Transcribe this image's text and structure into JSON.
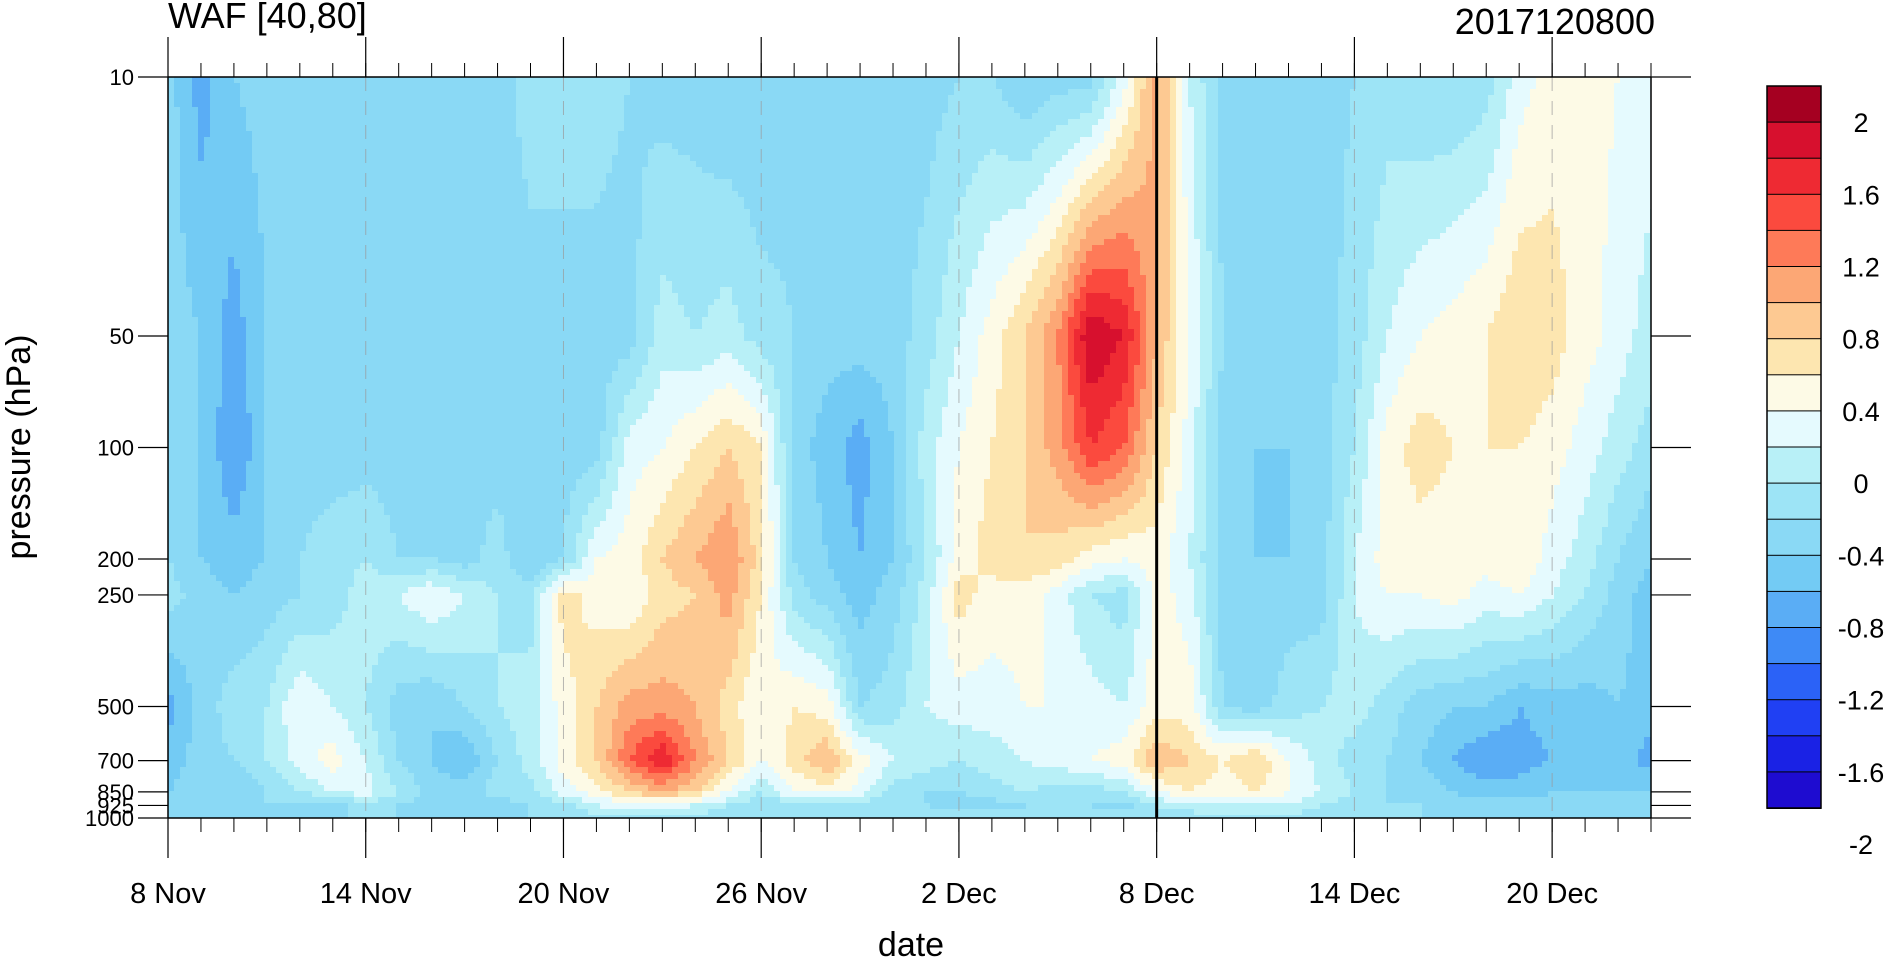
{
  "chart_data": {
    "type": "heatmap",
    "title_left": "WAF [40,80]",
    "title_right": "2017120800",
    "xlabel": "date",
    "ylabel": "pressure (hPa)",
    "x_tick_labels": [
      "8 Nov",
      "14 Nov",
      "20 Nov",
      "26 Nov",
      "2 Dec",
      "8 Dec",
      "14 Dec",
      "20 Dec"
    ],
    "x_tick_days": [
      0,
      6,
      12,
      18,
      24,
      30,
      36,
      42
    ],
    "xlim_days": [
      0,
      45
    ],
    "y_levels": [
      10,
      50,
      100,
      200,
      250,
      500,
      700,
      850,
      925,
      1000
    ],
    "y_tick_labels": [
      "10",
      "50",
      "100",
      "200",
      "250",
      "500",
      "700",
      "850",
      "925",
      "1000"
    ],
    "y_scale": "log",
    "ylim": [
      1000,
      10
    ],
    "reference_line": "8 Dec",
    "colorbar": {
      "label_values": [
        "2",
        "1.6",
        "1.2",
        "0.8",
        "0.4",
        "0",
        "-0.4",
        "-0.8",
        "-1.2",
        "-1.6",
        "-2"
      ],
      "colors_top_to_bottom": [
        "#a50021",
        "#d7102e",
        "#ee2a33",
        "#fb4a3e",
        "#fe7a58",
        "#fca775",
        "#fdc992",
        "#fde6b0",
        "#fdfae6",
        "#e5fafe",
        "#b8f0f7",
        "#9de4f6",
        "#8ad9f5",
        "#73cbf4",
        "#5aadf5",
        "#3e8af6",
        "#2b62f7",
        "#2040f3",
        "#1a22e5",
        "#1e0cd0"
      ]
    },
    "grid_days": [
      [
        10,
        11,
        12,
        13,
        14,
        15,
        16,
        17,
        18,
        19,
        20,
        21,
        22,
        23,
        24,
        25,
        26,
        27,
        28,
        29,
        30,
        31,
        32,
        33,
        34,
        35,
        36,
        37,
        38,
        39,
        40,
        41,
        42,
        43,
        44,
        45
      ],
      [
        0,
        1,
        2,
        3,
        4,
        5,
        6,
        7,
        8,
        9
      ]
    ],
    "values": [
      [
        -0.5,
        -0.9,
        -0.6,
        -0.5,
        -0.4,
        -0.5,
        -0.5,
        -0.5,
        -0.6,
        -0.6,
        -0.5,
        -0.3,
        -0.2,
        -0.3,
        -0.4,
        -0.5,
        -0.5,
        -0.6,
        -0.6,
        -0.5,
        -0.4,
        -0.5,
        -0.5,
        -0.5,
        -0.4,
        -0.4,
        -0.6,
        -0.5,
        -0.5,
        0.1,
        0.9,
        0.0,
        -0.5,
        -0.6,
        -0.6,
        -0.5,
        -0.4,
        -0.3,
        -0.4,
        -0.4,
        -0.3,
        0.1,
        0.3,
        0.3,
        0.2,
        0.1
      ],
      [
        -0.5,
        -0.6,
        -0.9,
        -0.6,
        -0.5,
        -0.5,
        -0.5,
        -0.5,
        -0.5,
        -0.5,
        -0.5,
        -0.5,
        -0.6,
        -0.5,
        -0.5,
        -0.1,
        -0.2,
        -0.1,
        -0.3,
        -0.4,
        -0.5,
        -0.5,
        -0.5,
        -0.3,
        0.0,
        0.3,
        0.6,
        1.0,
        1.8,
        1.6,
        0.8,
        0.2,
        -0.4,
        -0.5,
        -0.6,
        -0.5,
        -0.3,
        0.0,
        0.2,
        0.3,
        0.4,
        0.6,
        0.5,
        0.3,
        0.1,
        -0.1
      ],
      [
        -0.6,
        -0.6,
        -1.0,
        -0.6,
        -0.5,
        -0.5,
        -0.5,
        -0.5,
        -0.5,
        -0.5,
        -0.5,
        -0.6,
        -0.5,
        -0.5,
        0.1,
        0.2,
        0.4,
        0.6,
        0.4,
        -0.5,
        -0.7,
        -0.9,
        -0.6,
        -0.1,
        0.2,
        0.4,
        0.6,
        0.9,
        1.4,
        1.2,
        0.6,
        0.1,
        -0.5,
        -0.6,
        -0.6,
        -0.5,
        -0.2,
        0.3,
        0.5,
        0.4,
        0.4,
        0.4,
        0.3,
        0.1,
        -0.1,
        -0.3
      ],
      [
        -0.4,
        -0.6,
        -0.7,
        -0.6,
        -0.4,
        -0.3,
        -0.2,
        -0.4,
        -0.4,
        -0.5,
        -0.3,
        -0.6,
        -0.4,
        0.2,
        0.3,
        0.6,
        0.8,
        1.0,
        0.5,
        -0.4,
        -0.6,
        -0.8,
        -0.6,
        -0.2,
        0.3,
        0.5,
        0.6,
        0.5,
        0.3,
        0.2,
        0.3,
        0.0,
        -0.5,
        -0.6,
        -0.6,
        -0.5,
        0.0,
        0.3,
        0.3,
        0.3,
        0.3,
        0.4,
        0.1,
        -0.1,
        -0.4,
        -0.6
      ],
      [
        -0.3,
        -0.5,
        -0.6,
        -0.5,
        -0.4,
        -0.3,
        -0.1,
        0.0,
        0.2,
        0.0,
        -0.2,
        -0.3,
        0.5,
        0.3,
        0.2,
        0.5,
        0.6,
        0.9,
        0.4,
        -0.3,
        -0.5,
        -0.7,
        -0.5,
        -0.1,
        0.5,
        0.3,
        0.3,
        0.1,
        -0.2,
        -0.3,
        0.3,
        0.1,
        -0.5,
        -0.6,
        -0.5,
        -0.5,
        0.0,
        0.2,
        0.2,
        0.3,
        0.1,
        0.2,
        0.0,
        -0.2,
        -0.5,
        -0.7
      ],
      [
        -0.9,
        -0.5,
        -0.3,
        -0.2,
        0.2,
        0.0,
        -0.2,
        -0.5,
        -0.6,
        -0.4,
        -0.2,
        -0.1,
        0.3,
        0.6,
        0.9,
        0.9,
        0.8,
        0.5,
        0.2,
        0.4,
        0.3,
        -0.4,
        -0.3,
        0.0,
        0.1,
        0.1,
        0.2,
        0.2,
        0.1,
        0.0,
        0.3,
        0.3,
        -0.4,
        -0.5,
        -0.3,
        -0.2,
        -0.1,
        -0.3,
        -0.5,
        -0.6,
        -0.6,
        -0.8,
        -0.7,
        -0.7,
        -0.6,
        -0.7
      ],
      [
        -0.7,
        -0.5,
        -0.4,
        -0.2,
        0.1,
        0.3,
        0.0,
        -0.4,
        -0.6,
        -0.8,
        -0.4,
        -0.1,
        0.3,
        0.6,
        1.2,
        1.6,
        1.0,
        0.6,
        0.2,
        0.5,
        0.8,
        0.3,
        0.0,
        -0.1,
        -0.2,
        -0.1,
        0.0,
        0.1,
        0.2,
        0.3,
        0.8,
        0.6,
        0.4,
        0.6,
        0.2,
        -0.1,
        -0.3,
        -0.4,
        -0.6,
        -0.8,
        -1.0,
        -0.9,
        -0.8,
        -0.7,
        -0.7,
        -0.9
      ],
      [
        -0.6,
        -0.5,
        -0.6,
        -0.4,
        -0.2,
        0.0,
        0.1,
        -0.2,
        -0.5,
        -0.5,
        -0.3,
        -0.3,
        0.1,
        0.3,
        0.6,
        0.8,
        0.6,
        0.2,
        -0.2,
        0.2,
        0.3,
        0.1,
        -0.3,
        -0.4,
        -0.4,
        -0.3,
        -0.2,
        -0.3,
        -0.3,
        -0.2,
        0.2,
        0.4,
        0.3,
        0.4,
        0.2,
        0.0,
        -0.2,
        -0.4,
        -0.5,
        -0.6,
        -0.7,
        -0.7,
        -0.6,
        -0.6,
        -0.6,
        -0.6
      ],
      [
        -0.5,
        -0.5,
        -0.5,
        -0.4,
        -0.5,
        -0.5,
        -0.3,
        -0.4,
        -0.5,
        -0.5,
        -0.5,
        -0.4,
        -0.3,
        0.0,
        0.1,
        0.1,
        0.0,
        -0.2,
        -0.4,
        -0.3,
        -0.3,
        -0.3,
        -0.3,
        -0.4,
        -0.5,
        -0.5,
        -0.4,
        -0.3,
        -0.4,
        -0.5,
        -0.2,
        -0.1,
        0.0,
        0.0,
        0.0,
        -0.2,
        -0.3,
        -0.4,
        -0.4,
        -0.5,
        -0.5,
        -0.5,
        -0.5,
        -0.5,
        -0.5,
        -0.5
      ],
      [
        -0.4,
        -0.4,
        -0.4,
        -0.4,
        -0.4,
        -0.4,
        -0.4,
        -0.4,
        -0.4,
        -0.4,
        -0.4,
        -0.4,
        -0.4,
        -0.3,
        -0.3,
        -0.3,
        -0.3,
        -0.3,
        -0.3,
        -0.3,
        -0.3,
        -0.3,
        -0.3,
        -0.3,
        -0.3,
        -0.3,
        -0.3,
        -0.3,
        -0.3,
        -0.3,
        -0.3,
        -0.3,
        -0.3,
        -0.3,
        -0.3,
        -0.3,
        -0.3,
        -0.3,
        -0.4,
        -0.4,
        -0.4,
        -0.4,
        -0.4,
        -0.4,
        -0.4,
        -0.4
      ]
    ]
  }
}
